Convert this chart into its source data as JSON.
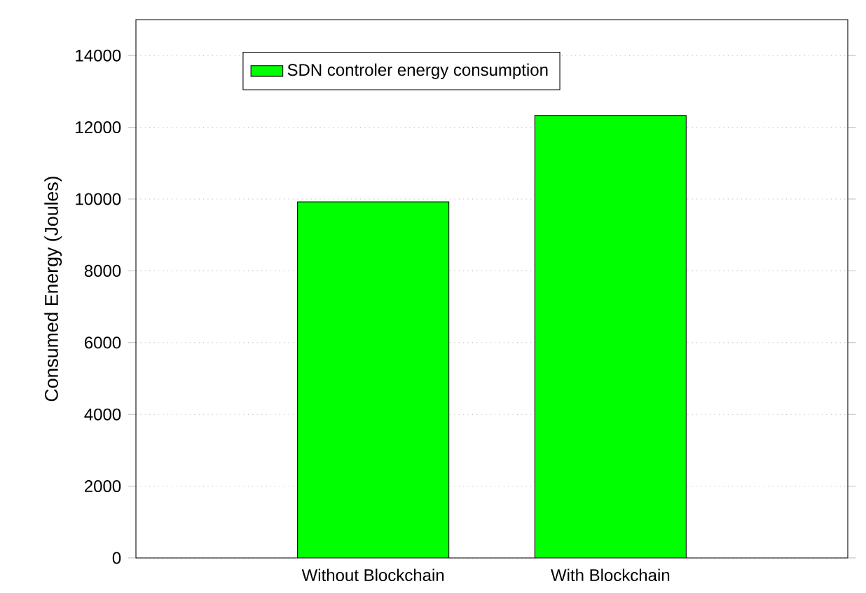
{
  "chart_data": {
    "type": "bar",
    "ylabel": "Consumed Energy (Joules)",
    "categories": [
      "Without Blockchain",
      "With Blockchain"
    ],
    "series": [
      {
        "name": "SDN controler energy consumption",
        "color": "#00ff00",
        "values": [
          9920,
          12330
        ]
      }
    ],
    "ylim": [
      0,
      15000
    ],
    "yticks": [
      0,
      2000,
      4000,
      6000,
      8000,
      10000,
      12000,
      14000
    ],
    "grid": "y",
    "legend": "top"
  }
}
